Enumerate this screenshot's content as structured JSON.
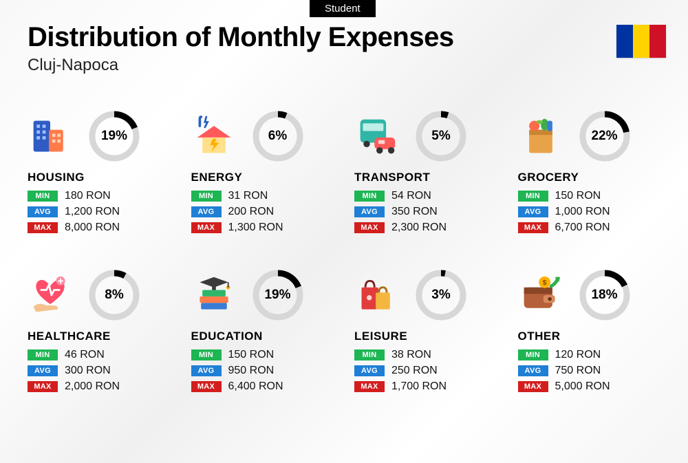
{
  "badge": "Student",
  "title": "Distribution of Monthly Expenses",
  "subtitle": "Cluj-Napoca",
  "flag_colors": [
    "#0033a0",
    "#ffd200",
    "#ce1126"
  ],
  "currency_suffix": " RON",
  "tag_labels": {
    "min": "MIN",
    "avg": "AVG",
    "max": "MAX"
  },
  "tag_colors": {
    "min": "#1eb553",
    "avg": "#1f7fd6",
    "max": "#d31e1e"
  },
  "donut": {
    "track_color": "#d7d7d7",
    "fill_color": "#000000",
    "stroke_width": 9,
    "radius": 32
  },
  "categories": [
    {
      "key": "housing",
      "name": "HOUSING",
      "percent": 19,
      "min": "180",
      "avg": "1,200",
      "max": "8,000",
      "icon": "buildings"
    },
    {
      "key": "energy",
      "name": "ENERGY",
      "percent": 6,
      "min": "31",
      "avg": "200",
      "max": "1,300",
      "icon": "house-bolt"
    },
    {
      "key": "transport",
      "name": "TRANSPORT",
      "percent": 5,
      "min": "54",
      "avg": "350",
      "max": "2,300",
      "icon": "bus-car"
    },
    {
      "key": "grocery",
      "name": "GROCERY",
      "percent": 22,
      "min": "150",
      "avg": "1,000",
      "max": "6,700",
      "icon": "grocery-bag"
    },
    {
      "key": "healthcare",
      "name": "HEALTHCARE",
      "percent": 8,
      "min": "46",
      "avg": "300",
      "max": "2,000",
      "icon": "heart-hand"
    },
    {
      "key": "education",
      "name": "EDUCATION",
      "percent": 19,
      "min": "150",
      "avg": "950",
      "max": "6,400",
      "icon": "grad-books"
    },
    {
      "key": "leisure",
      "name": "LEISURE",
      "percent": 3,
      "min": "38",
      "avg": "250",
      "max": "1,700",
      "icon": "shopping-bags"
    },
    {
      "key": "other",
      "name": "OTHER",
      "percent": 18,
      "min": "120",
      "avg": "750",
      "max": "5,000",
      "icon": "wallet-arrow"
    }
  ]
}
